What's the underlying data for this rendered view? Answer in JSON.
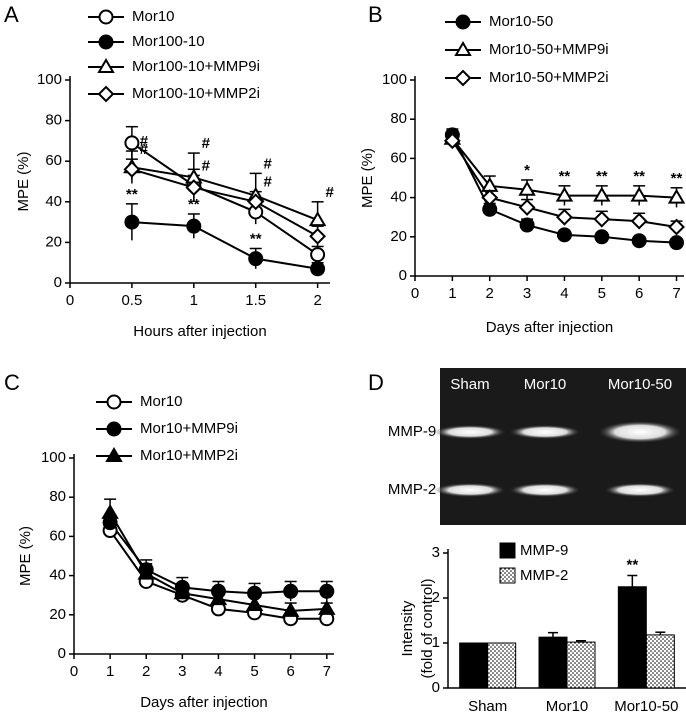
{
  "chart_data": [
    {
      "type": "line",
      "panel": "A",
      "xlabel": "Hours after injection",
      "ylabel": "MPE (%)",
      "x": [
        0.5,
        1,
        1.5,
        2
      ],
      "xlim": [
        0,
        2.1
      ],
      "xticks": [
        0,
        0.5,
        1,
        1.5,
        2
      ],
      "ylim": [
        0,
        100
      ],
      "yticks": [
        0,
        20,
        40,
        60,
        80,
        100
      ],
      "legend": "top",
      "series": [
        {
          "name": "Mor10",
          "color": "#000000",
          "marker": "circle-open",
          "values": [
            69,
            48,
            35,
            14
          ],
          "errors": [
            8,
            8,
            6,
            4
          ],
          "annotations": [
            null,
            null,
            null,
            null
          ]
        },
        {
          "name": "Mor100-10",
          "color": "#000000",
          "marker": "circle-filled",
          "values": [
            30,
            28,
            12,
            7
          ],
          "errors": [
            9,
            6,
            5,
            3
          ],
          "annotations": [
            "**",
            "**",
            "**",
            null
          ]
        },
        {
          "name": "Mor100-10+MMP9i",
          "color": "#000000",
          "marker": "triangle-open",
          "values": [
            57,
            52,
            43,
            31
          ],
          "errors": [
            8,
            12,
            11,
            9
          ],
          "annotations": [
            "#",
            "#",
            "#",
            "#"
          ]
        },
        {
          "name": "Mor100-10+MMP2i",
          "color": "#000000",
          "marker": "diamond-open",
          "values": [
            56,
            47,
            40,
            23
          ],
          "errors": [
            5,
            6,
            5,
            5
          ],
          "annotations": [
            "#",
            "#",
            "#",
            null
          ]
        }
      ]
    },
    {
      "type": "line",
      "panel": "B",
      "xlabel": "Days after injection",
      "ylabel": "MPE (%)",
      "x": [
        1,
        2,
        3,
        4,
        5,
        6,
        7
      ],
      "xlim": [
        0,
        7.2
      ],
      "xticks": [
        0,
        1,
        2,
        3,
        4,
        5,
        6,
        7
      ],
      "ylim": [
        0,
        100
      ],
      "yticks": [
        0,
        20,
        40,
        60,
        80,
        100
      ],
      "legend": "top",
      "series": [
        {
          "name": "Mor10-50",
          "color": "#000000",
          "marker": "circle-filled",
          "values": [
            72,
            34,
            26,
            21,
            20,
            18,
            17
          ],
          "errors": [
            3,
            3,
            3,
            2,
            2,
            2,
            2
          ],
          "annotations": [
            null,
            null,
            null,
            null,
            null,
            null,
            null
          ]
        },
        {
          "name": "Mor10-50+MMP9i",
          "color": "#000000",
          "marker": "triangle-open",
          "values": [
            70,
            46,
            44,
            41,
            41,
            41,
            40
          ],
          "errors": [
            3,
            5,
            5,
            5,
            5,
            5,
            5
          ],
          "annotations": [
            null,
            null,
            "*",
            "**",
            "**",
            "**",
            "**"
          ]
        },
        {
          "name": "Mor10-50+MMP2i",
          "color": "#000000",
          "marker": "diamond-open",
          "values": [
            69,
            40,
            35,
            30,
            29,
            28,
            25
          ],
          "errors": [
            3,
            4,
            4,
            4,
            4,
            4,
            3
          ],
          "annotations": [
            null,
            null,
            null,
            null,
            null,
            null,
            null
          ]
        }
      ]
    },
    {
      "type": "line",
      "panel": "C",
      "xlabel": "Days after injection",
      "ylabel": "MPE (%)",
      "x": [
        1,
        2,
        3,
        4,
        5,
        6,
        7
      ],
      "xlim": [
        0,
        7.2
      ],
      "xticks": [
        0,
        1,
        2,
        3,
        4,
        5,
        6,
        7
      ],
      "ylim": [
        0,
        100
      ],
      "yticks": [
        0,
        20,
        40,
        60,
        80,
        100
      ],
      "legend": "top",
      "series": [
        {
          "name": "Mor10",
          "color": "#000000",
          "marker": "circle-open",
          "values": [
            63,
            37,
            30,
            23,
            21,
            18,
            18
          ],
          "errors": [
            3,
            3,
            3,
            2,
            3,
            3,
            2
          ],
          "annotations": [
            null,
            null,
            null,
            null,
            null,
            null,
            null
          ]
        },
        {
          "name": "Mor10+MMP9i",
          "color": "#000000",
          "marker": "circle-filled",
          "values": [
            67,
            43,
            34,
            32,
            31,
            32,
            32
          ],
          "errors": [
            4,
            5,
            5,
            5,
            5,
            5,
            5
          ],
          "annotations": [
            null,
            null,
            null,
            null,
            null,
            null,
            null
          ]
        },
        {
          "name": "Mor10+MMP2i",
          "color": "#000000",
          "marker": "triangle-filled",
          "values": [
            72,
            41,
            31,
            28,
            25,
            22,
            23
          ],
          "errors": [
            7,
            5,
            4,
            4,
            4,
            4,
            3
          ],
          "annotations": [
            null,
            null,
            null,
            null,
            null,
            null,
            null
          ]
        }
      ]
    },
    {
      "type": "bar",
      "panel": "D",
      "gel": {
        "lanes": [
          "Sham",
          "Mor10",
          "Mor10-50"
        ],
        "bands": [
          "MMP-9",
          "MMP-2"
        ]
      },
      "ylabel": [
        "Intensity",
        "(fold of control)"
      ],
      "categories": [
        "Sham",
        "Mor10",
        "Mor10-50"
      ],
      "ylim": [
        0,
        3
      ],
      "yticks": [
        0,
        1,
        2,
        3
      ],
      "legend": "top",
      "series": [
        {
          "name": "MMP-9",
          "color": "#000000",
          "fill": "solid",
          "values": [
            1,
            1.13,
            2.25
          ],
          "errors": [
            0,
            0.1,
            0.25
          ],
          "annotations": [
            null,
            null,
            "**"
          ]
        },
        {
          "name": "MMP-2",
          "color": "#000000",
          "fill": "dots",
          "values": [
            1,
            1.02,
            1.18
          ],
          "errors": [
            0,
            0.03,
            0.06
          ],
          "annotations": [
            null,
            null,
            null
          ]
        }
      ]
    }
  ]
}
